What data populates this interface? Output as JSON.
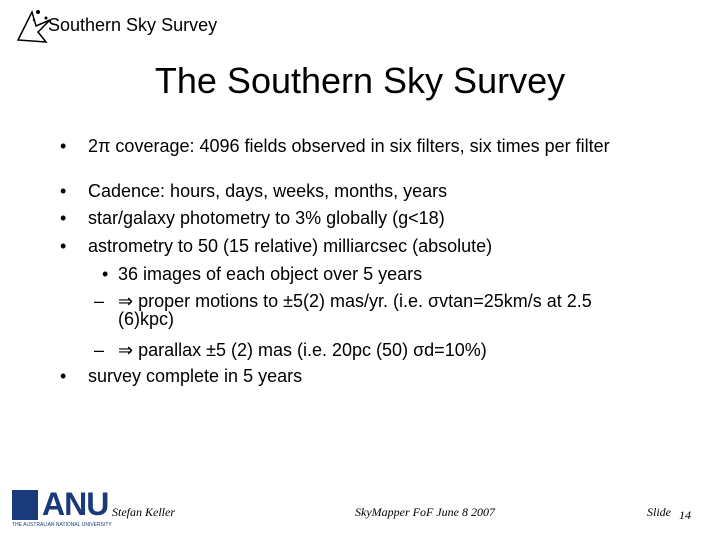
{
  "header": {
    "logo_text": "Southern Sky Survey"
  },
  "title": "The Southern Sky Survey",
  "bullets": [
    {
      "marker": "•",
      "text": "2π coverage: 4096 fields observed in six filters, six times per filter"
    },
    {
      "marker": "•",
      "text": "Cadence: hours, days, weeks, months, years"
    },
    {
      "marker": "•",
      "text": "star/galaxy photometry to 3% globally (g<18)"
    },
    {
      "marker": "•",
      "text": "astrometry to 50 (15 relative) milliarcsec (absolute)"
    },
    {
      "marker": "•",
      "text": "36 images of each object over 5 years"
    },
    {
      "marker": "–",
      "text": "⇒ proper motions to ±5(2) mas/yr. (i.e. σvtan=25km/s at 2.5 (6)kpc)"
    },
    {
      "marker": "–",
      "text": "⇒ parallax ±5 (2) mas (i.e. 20pc (50) σd=10%)"
    },
    {
      "marker": "•",
      "text": "survey complete in 5 years"
    }
  ],
  "footer": {
    "logo": "ANU",
    "logo_subtext": "THE AUSTRALIAN NATIONAL UNIVERSITY",
    "author": "Stefan Keller",
    "event": "SkyMapper FoF June 8 2007",
    "slide_label": "Slide",
    "slide_number": "14"
  }
}
